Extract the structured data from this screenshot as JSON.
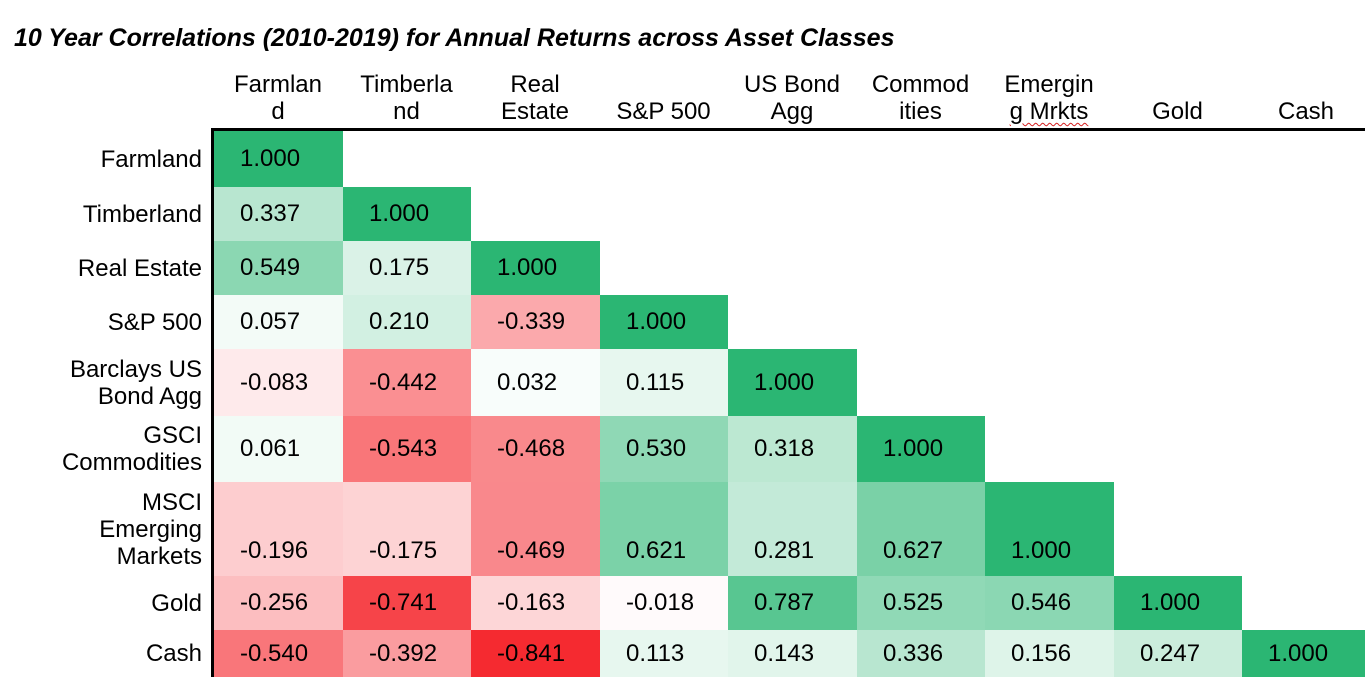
{
  "title": "10 Year Correlations (2010-2019) for Annual Returns across Asset Classes",
  "chart_data": {
    "type": "heatmap",
    "title": "10 Year Correlations (2010-2019) for Annual Returns across Asset Classes",
    "columns": [
      [
        "Farmlan",
        "d"
      ],
      [
        "Timberla",
        "nd"
      ],
      [
        "Real",
        "Estate"
      ],
      [
        "S&P 500"
      ],
      [
        "US Bond",
        "Agg"
      ],
      [
        "Commod",
        "ities"
      ],
      [
        "Emergin",
        "g Mrkts"
      ],
      [
        "Gold"
      ],
      [
        "Cash"
      ]
    ],
    "rows": [
      [
        "Farmland"
      ],
      [
        "Timberland"
      ],
      [
        "Real Estate"
      ],
      [
        "S&P 500"
      ],
      [
        "Barclays US",
        "Bond Agg"
      ],
      [
        "GSCI",
        "Commodities"
      ],
      [
        "MSCI",
        "Emerging",
        "Markets"
      ],
      [
        "Gold"
      ],
      [
        "Cash"
      ]
    ],
    "values": [
      [
        "1.000"
      ],
      [
        "0.337",
        "1.000"
      ],
      [
        "0.549",
        "0.175",
        "1.000"
      ],
      [
        "0.057",
        "0.210",
        "-0.339",
        "1.000"
      ],
      [
        "-0.083",
        "-0.442",
        "0.032",
        "0.115",
        "1.000"
      ],
      [
        "0.061",
        "-0.543",
        "-0.468",
        "0.530",
        "0.318",
        "1.000"
      ],
      [
        "-0.196",
        "-0.175",
        "-0.469",
        "0.621",
        "0.281",
        "0.627",
        "1.000"
      ],
      [
        "-0.256",
        "-0.741",
        "-0.163",
        "-0.018",
        "0.787",
        "0.525",
        "0.546",
        "1.000"
      ],
      [
        "-0.540",
        "-0.392",
        "-0.841",
        "0.113",
        "0.143",
        "0.336",
        "0.156",
        "0.247",
        "1.000"
      ]
    ],
    "color_scale": {
      "positive": "#2bb673",
      "negative": "#f5282e",
      "neutral": "#ffffff"
    }
  }
}
